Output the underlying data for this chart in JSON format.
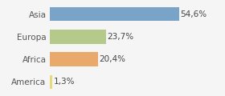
{
  "categories": [
    "Asia",
    "Europa",
    "Africa",
    "America"
  ],
  "values": [
    54.6,
    23.7,
    20.4,
    1.3
  ],
  "labels": [
    "54,6%",
    "23,7%",
    "20,4%",
    "1,3%"
  ],
  "bar_colors": [
    "#7aa3c8",
    "#b5c98a",
    "#e8a96a",
    "#e8d97a"
  ],
  "background_color": "#f5f5f5",
  "xlim": [
    0,
    72
  ],
  "bar_height": 0.62,
  "label_fontsize": 7.5,
  "tick_fontsize": 7.5
}
